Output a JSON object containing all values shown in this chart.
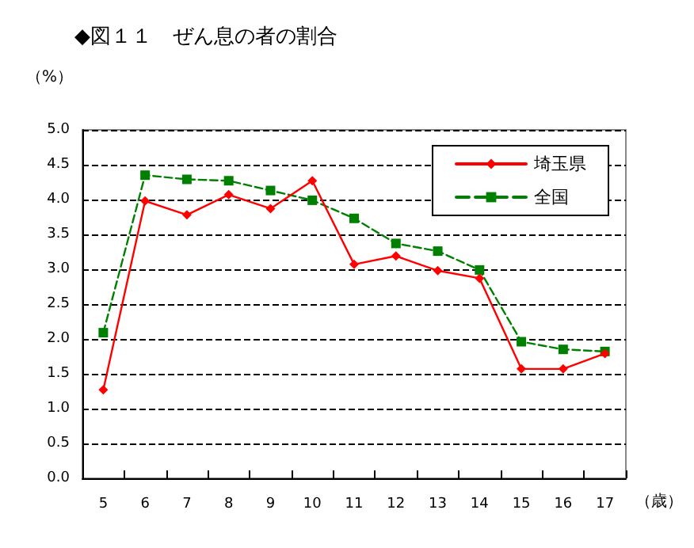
{
  "chart_data": {
    "type": "line",
    "title": "◆図１１　ぜん息の者の割合",
    "ylabel": "（%）",
    "xlabel": "（歳）",
    "categories": [
      "5",
      "6",
      "7",
      "8",
      "9",
      "10",
      "11",
      "12",
      "13",
      "14",
      "15",
      "16",
      "17"
    ],
    "series": [
      {
        "name": "埼玉県",
        "color": "#ff0000",
        "marker": "diamond",
        "line_style": "solid",
        "values": [
          1.27,
          3.98,
          3.78,
          4.07,
          3.87,
          4.27,
          3.07,
          3.19,
          2.98,
          2.87,
          1.57,
          1.57,
          1.79
        ]
      },
      {
        "name": "全国",
        "color": "#008000",
        "marker": "square",
        "line_style": "dashed",
        "values": [
          2.09,
          4.35,
          4.29,
          4.27,
          4.13,
          3.99,
          3.73,
          3.37,
          3.26,
          2.99,
          1.96,
          1.85,
          1.82
        ]
      }
    ],
    "ylim": [
      0,
      5
    ],
    "yticks": [
      {
        "value": 0,
        "label": "0.0"
      },
      0.5,
      {
        "value": 1,
        "label": "1.0"
      },
      1.5,
      {
        "value": 2,
        "label": "2.0"
      },
      2.5,
      {
        "value": 3,
        "label": "3.0"
      },
      3.5,
      {
        "value": 4,
        "label": "4.0"
      },
      4.5,
      {
        "value": 5,
        "label": "5.0"
      }
    ],
    "grid": "y",
    "legend": "top right"
  }
}
